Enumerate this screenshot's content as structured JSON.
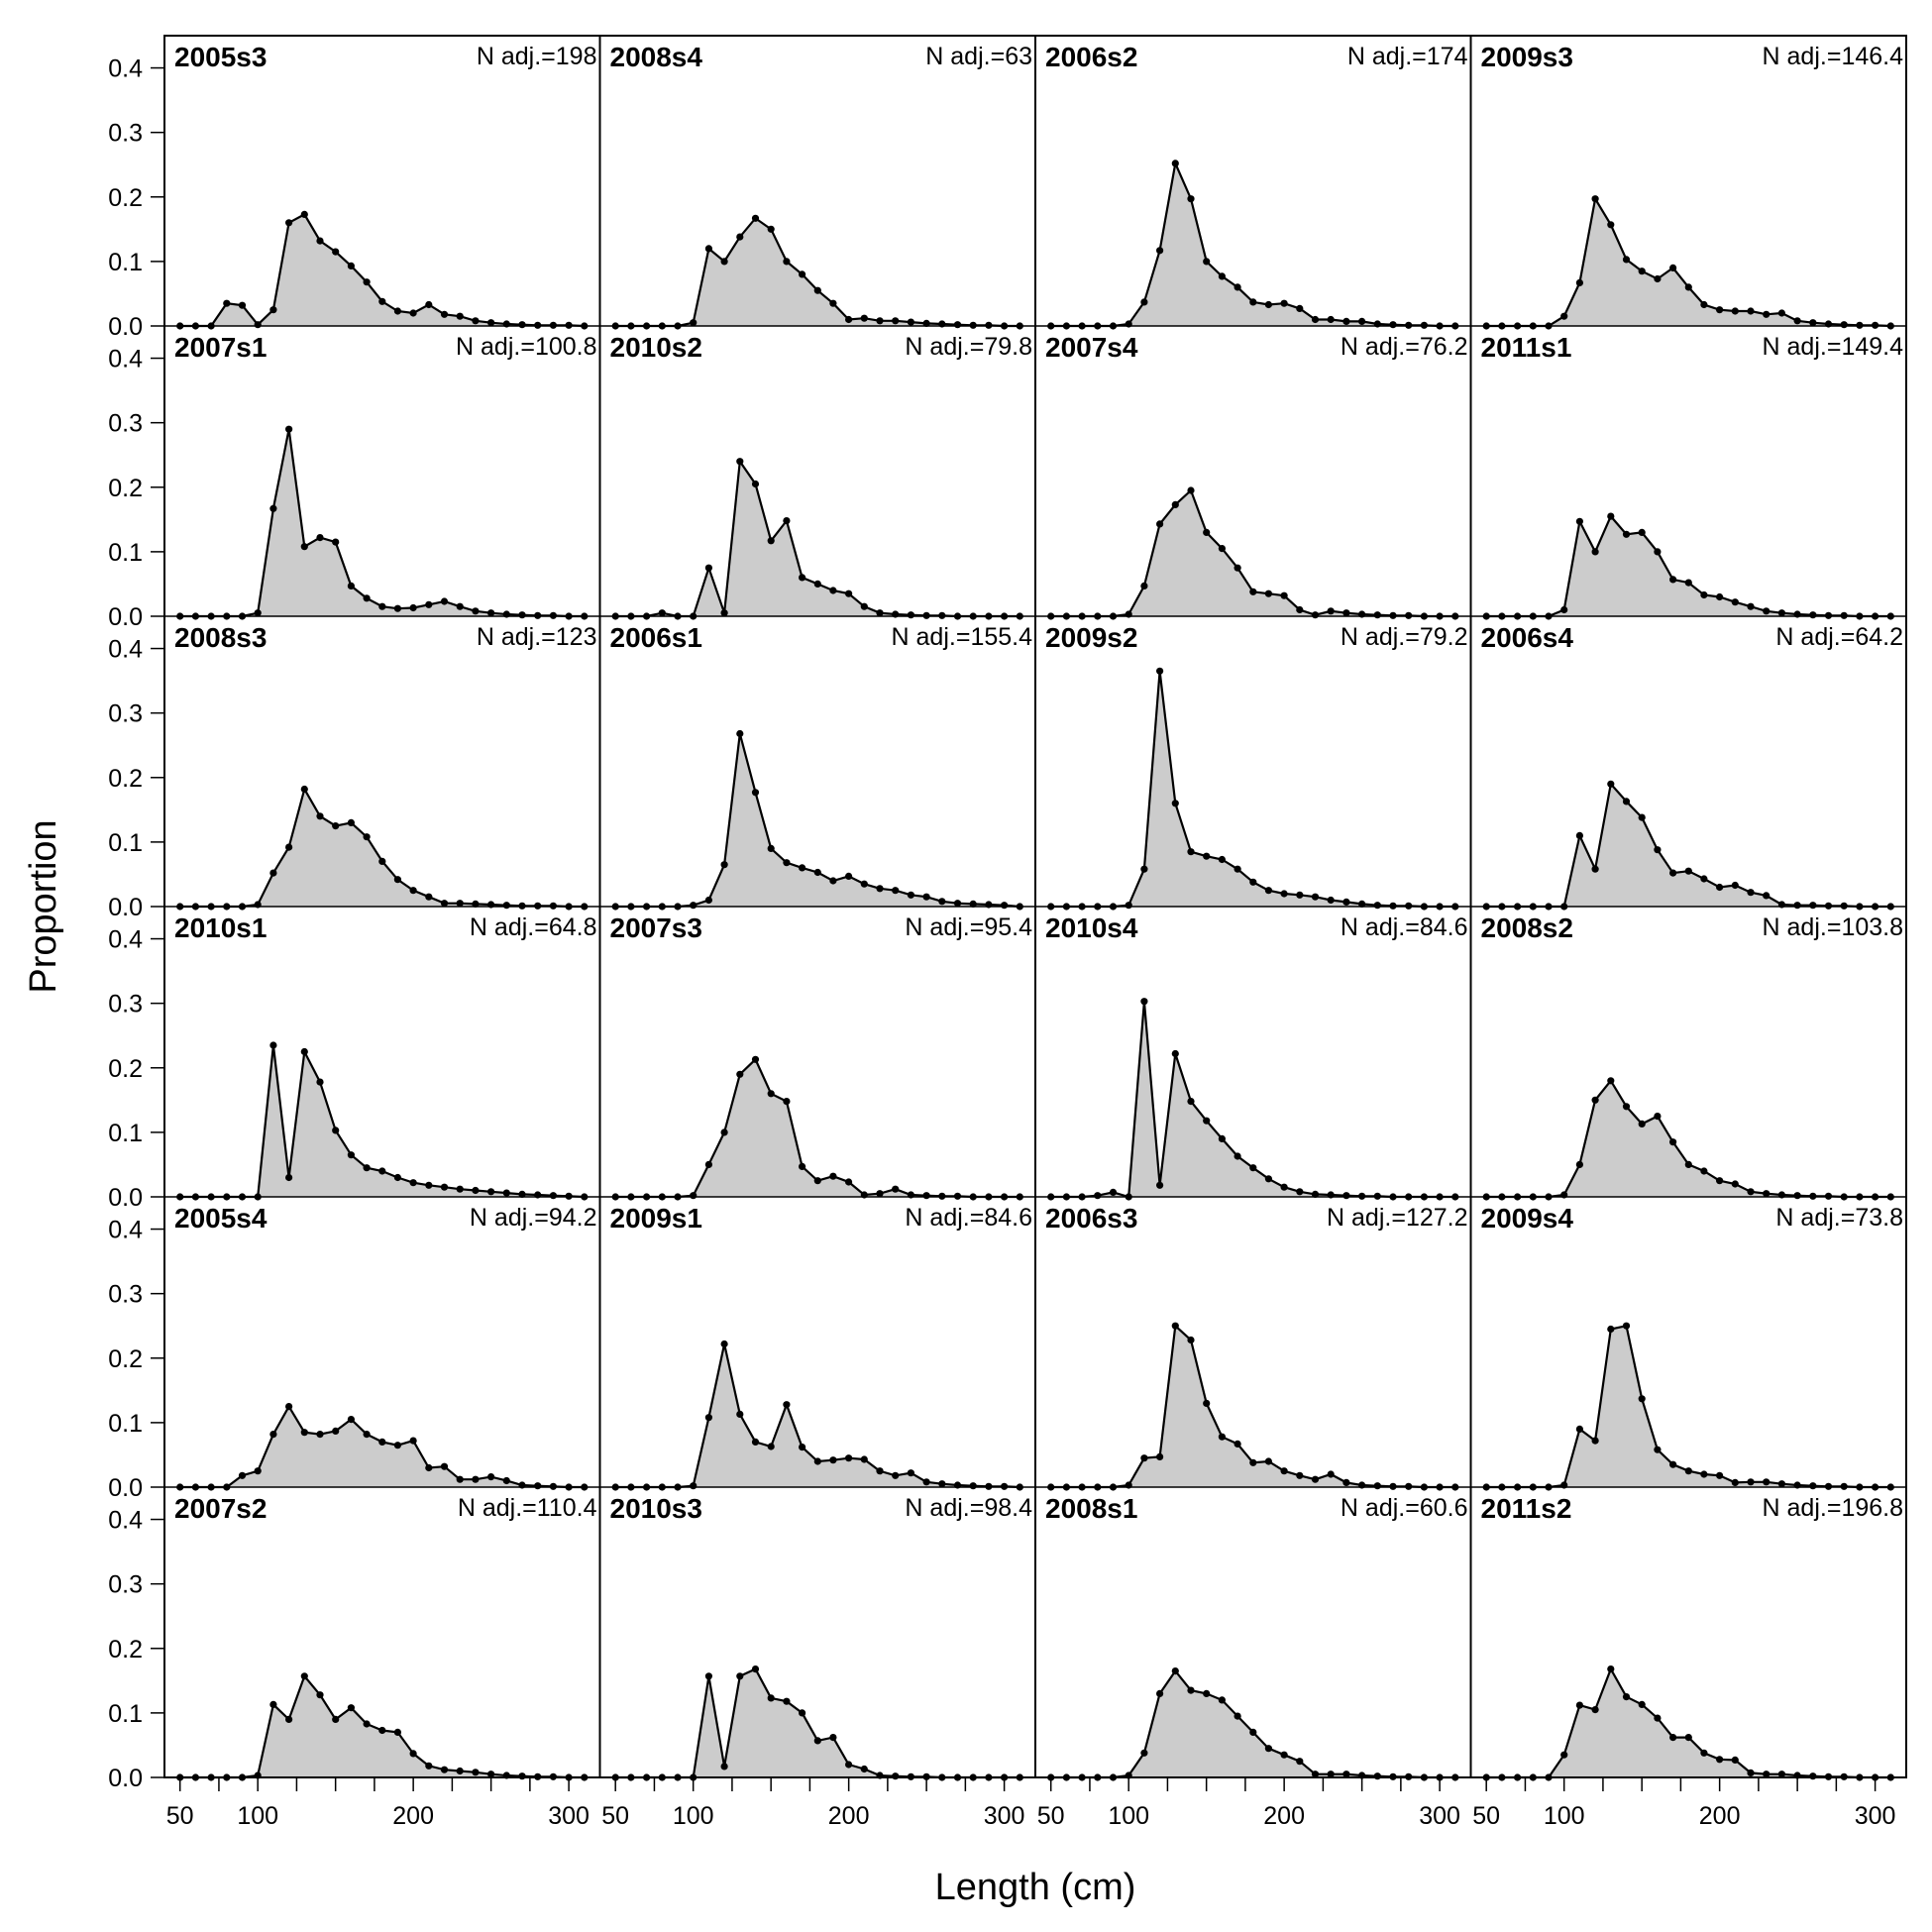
{
  "chart_data": {
    "type": "area",
    "xlabel": "Length (cm)",
    "ylabel": "Proportion",
    "xlim": [
      40,
      320
    ],
    "ylim": [
      0,
      0.45
    ],
    "x_ticks": [
      50,
      75,
      100,
      125,
      150,
      175,
      200,
      225,
      250,
      275,
      300
    ],
    "x_tick_labels": [
      {
        "value": 50,
        "label": "50"
      },
      {
        "value": 100,
        "label": "100"
      },
      {
        "value": 200,
        "label": "200"
      },
      {
        "value": 300,
        "label": "300"
      }
    ],
    "y_ticks": [
      {
        "value": 0.0,
        "label": "0.0"
      },
      {
        "value": 0.1,
        "label": "0.1"
      },
      {
        "value": 0.2,
        "label": "0.2"
      },
      {
        "value": 0.3,
        "label": "0.3"
      },
      {
        "value": 0.4,
        "label": "0.4"
      }
    ],
    "x": [
      50,
      60,
      70,
      80,
      90,
      100,
      110,
      120,
      130,
      140,
      150,
      160,
      170,
      180,
      190,
      200,
      210,
      220,
      230,
      240,
      250,
      260,
      270,
      280,
      290,
      300,
      310
    ],
    "panels": [
      {
        "title": "2005s3",
        "n_label": "N adj.=198",
        "values": [
          0,
          0,
          0,
          0.035,
          0.032,
          0.002,
          0.025,
          0.16,
          0.173,
          0.132,
          0.115,
          0.093,
          0.068,
          0.038,
          0.023,
          0.02,
          0.033,
          0.018,
          0.015,
          0.008,
          0.005,
          0.003,
          0.002,
          0.001,
          0.001,
          0.001,
          0
        ]
      },
      {
        "title": "2007s1",
        "n_label": "N adj.=100.8",
        "values": [
          0,
          0,
          0,
          0,
          0,
          0.005,
          0.167,
          0.29,
          0.108,
          0.122,
          0.115,
          0.047,
          0.028,
          0.015,
          0.012,
          0.013,
          0.018,
          0.023,
          0.015,
          0.008,
          0.005,
          0.003,
          0.002,
          0.001,
          0.001,
          0,
          0
        ]
      },
      {
        "title": "2008s3",
        "n_label": "N adj.=123",
        "values": [
          0,
          0,
          0,
          0,
          0,
          0.003,
          0.052,
          0.092,
          0.182,
          0.14,
          0.125,
          0.13,
          0.108,
          0.07,
          0.042,
          0.025,
          0.015,
          0.005,
          0.005,
          0.004,
          0.003,
          0.002,
          0.001,
          0.001,
          0.001,
          0,
          0
        ]
      },
      {
        "title": "2010s1",
        "n_label": "N adj.=64.8",
        "values": [
          0,
          0,
          0,
          0,
          0,
          0,
          0.235,
          0.03,
          0.225,
          0.178,
          0.103,
          0.065,
          0.045,
          0.04,
          0.03,
          0.022,
          0.018,
          0.015,
          0.012,
          0.01,
          0.008,
          0.006,
          0.004,
          0.003,
          0.002,
          0.001,
          0
        ]
      },
      {
        "title": "2005s4",
        "n_label": "N adj.=94.2",
        "values": [
          0,
          0,
          0,
          0,
          0.018,
          0.025,
          0.082,
          0.125,
          0.085,
          0.082,
          0.087,
          0.105,
          0.082,
          0.07,
          0.065,
          0.072,
          0.03,
          0.032,
          0.012,
          0.012,
          0.016,
          0.01,
          0.003,
          0.002,
          0.001,
          0,
          0
        ]
      },
      {
        "title": "2007s2",
        "n_label": "N adj.=110.4",
        "values": [
          0,
          0,
          0,
          0,
          0,
          0.003,
          0.113,
          0.09,
          0.157,
          0.128,
          0.09,
          0.108,
          0.083,
          0.073,
          0.07,
          0.037,
          0.018,
          0.012,
          0.01,
          0.008,
          0.005,
          0.003,
          0.002,
          0.001,
          0.001,
          0,
          0
        ]
      },
      {
        "title": "2008s4",
        "n_label": "N adj.=63",
        "values": [
          0,
          0,
          0,
          0,
          0,
          0.005,
          0.12,
          0.1,
          0.138,
          0.167,
          0.15,
          0.1,
          0.08,
          0.055,
          0.035,
          0.01,
          0.012,
          0.008,
          0.008,
          0.006,
          0.004,
          0.003,
          0.002,
          0.001,
          0.001,
          0,
          0
        ]
      },
      {
        "title": "2010s2",
        "n_label": "N adj.=79.8",
        "values": [
          0,
          0,
          0,
          0.005,
          0,
          0,
          0.075,
          0.005,
          0.24,
          0.205,
          0.117,
          0.148,
          0.06,
          0.05,
          0.04,
          0.035,
          0.015,
          0.005,
          0.003,
          0.002,
          0.001,
          0.001,
          0,
          0,
          0,
          0,
          0
        ]
      },
      {
        "title": "2006s1",
        "n_label": "N adj.=155.4",
        "values": [
          0,
          0,
          0,
          0,
          0,
          0.002,
          0.01,
          0.065,
          0.268,
          0.177,
          0.09,
          0.068,
          0.06,
          0.053,
          0.04,
          0.047,
          0.035,
          0.028,
          0.025,
          0.018,
          0.015,
          0.008,
          0.005,
          0.004,
          0.003,
          0.002,
          0
        ]
      },
      {
        "title": "2007s3",
        "n_label": "N adj.=95.4",
        "values": [
          0,
          0,
          0,
          0,
          0,
          0.002,
          0.05,
          0.1,
          0.19,
          0.213,
          0.16,
          0.148,
          0.047,
          0.025,
          0.032,
          0.023,
          0.003,
          0.005,
          0.012,
          0.003,
          0.002,
          0.001,
          0.001,
          0,
          0,
          0,
          0
        ]
      },
      {
        "title": "2009s1",
        "n_label": "N adj.=84.6",
        "values": [
          0,
          0,
          0,
          0,
          0,
          0.002,
          0.108,
          0.222,
          0.113,
          0.07,
          0.063,
          0.128,
          0.062,
          0.04,
          0.042,
          0.045,
          0.043,
          0.025,
          0.018,
          0.022,
          0.008,
          0.005,
          0.003,
          0.002,
          0.001,
          0.001,
          0
        ]
      },
      {
        "title": "2010s3",
        "n_label": "N adj.=98.4",
        "values": [
          0,
          0,
          0,
          0,
          0,
          0,
          0.157,
          0.017,
          0.157,
          0.168,
          0.123,
          0.118,
          0.1,
          0.057,
          0.062,
          0.02,
          0.013,
          0.003,
          0.002,
          0.001,
          0.001,
          0,
          0,
          0,
          0,
          0,
          0
        ]
      },
      {
        "title": "2006s2",
        "n_label": "N adj.=174",
        "values": [
          0,
          0,
          0,
          0,
          0,
          0.003,
          0.037,
          0.117,
          0.252,
          0.197,
          0.1,
          0.077,
          0.06,
          0.037,
          0.033,
          0.035,
          0.027,
          0.01,
          0.01,
          0.007,
          0.007,
          0.003,
          0.002,
          0.001,
          0.001,
          0,
          0
        ]
      },
      {
        "title": "2007s4",
        "n_label": "N adj.=76.2",
        "values": [
          0,
          0,
          0,
          0,
          0,
          0.003,
          0.047,
          0.143,
          0.173,
          0.195,
          0.13,
          0.105,
          0.075,
          0.038,
          0.035,
          0.032,
          0.01,
          0.002,
          0.008,
          0.005,
          0.003,
          0.002,
          0.001,
          0.001,
          0,
          0,
          0
        ]
      },
      {
        "title": "2009s2",
        "n_label": "N adj.=79.2",
        "values": [
          0,
          0,
          0,
          0,
          0,
          0.002,
          0.058,
          0.365,
          0.16,
          0.085,
          0.078,
          0.073,
          0.058,
          0.038,
          0.025,
          0.02,
          0.018,
          0.015,
          0.01,
          0.007,
          0.004,
          0.002,
          0.001,
          0.001,
          0,
          0,
          0
        ]
      },
      {
        "title": "2010s4",
        "n_label": "N adj.=84.6",
        "values": [
          0,
          0,
          0,
          0.002,
          0.007,
          0,
          0.303,
          0.018,
          0.222,
          0.148,
          0.118,
          0.09,
          0.063,
          0.045,
          0.028,
          0.015,
          0.008,
          0.004,
          0.003,
          0.002,
          0.001,
          0.001,
          0,
          0,
          0,
          0,
          0
        ]
      },
      {
        "title": "2006s3",
        "n_label": "N adj.=127.2",
        "values": [
          0,
          0,
          0,
          0,
          0,
          0.003,
          0.045,
          0.047,
          0.25,
          0.228,
          0.13,
          0.078,
          0.067,
          0.038,
          0.04,
          0.025,
          0.018,
          0.012,
          0.02,
          0.007,
          0.003,
          0.002,
          0.001,
          0.001,
          0,
          0,
          0
        ]
      },
      {
        "title": "2008s1",
        "n_label": "N adj.=60.6",
        "values": [
          0,
          0,
          0,
          0,
          0,
          0.003,
          0.038,
          0.13,
          0.165,
          0.135,
          0.13,
          0.12,
          0.095,
          0.07,
          0.045,
          0.035,
          0.025,
          0.005,
          0.005,
          0.005,
          0.003,
          0.002,
          0.001,
          0.001,
          0,
          0,
          0
        ]
      },
      {
        "title": "2009s3",
        "n_label": "N adj.=146.4",
        "values": [
          0,
          0,
          0,
          0,
          0,
          0.015,
          0.067,
          0.197,
          0.157,
          0.103,
          0.085,
          0.073,
          0.09,
          0.06,
          0.033,
          0.025,
          0.023,
          0.023,
          0.018,
          0.02,
          0.008,
          0.005,
          0.003,
          0.002,
          0.001,
          0.001,
          0
        ]
      },
      {
        "title": "2011s1",
        "n_label": "N adj.=149.4",
        "values": [
          0,
          0,
          0,
          0,
          0,
          0.01,
          0.147,
          0.1,
          0.155,
          0.127,
          0.13,
          0.1,
          0.057,
          0.052,
          0.033,
          0.03,
          0.022,
          0.015,
          0.008,
          0.005,
          0.003,
          0.002,
          0.001,
          0.001,
          0,
          0,
          0
        ]
      },
      {
        "title": "2006s4",
        "n_label": "N adj.=64.2",
        "values": [
          0,
          0,
          0,
          0,
          0,
          0,
          0.11,
          0.058,
          0.19,
          0.163,
          0.138,
          0.088,
          0.052,
          0.055,
          0.043,
          0.03,
          0.033,
          0.022,
          0.017,
          0.003,
          0.002,
          0.002,
          0.001,
          0.001,
          0,
          0,
          0
        ]
      },
      {
        "title": "2008s2",
        "n_label": "N adj.=103.8",
        "values": [
          0,
          0,
          0,
          0,
          0,
          0.003,
          0.05,
          0.15,
          0.18,
          0.14,
          0.113,
          0.125,
          0.085,
          0.05,
          0.04,
          0.025,
          0.02,
          0.008,
          0.005,
          0.003,
          0.002,
          0.001,
          0.001,
          0,
          0,
          0,
          0
        ]
      },
      {
        "title": "2009s4",
        "n_label": "N adj.=73.8",
        "values": [
          0,
          0,
          0,
          0,
          0,
          0.003,
          0.09,
          0.072,
          0.245,
          0.25,
          0.137,
          0.058,
          0.035,
          0.025,
          0.02,
          0.018,
          0.007,
          0.008,
          0.008,
          0.005,
          0.003,
          0.002,
          0.001,
          0.001,
          0,
          0,
          0
        ]
      },
      {
        "title": "2011s2",
        "n_label": "N adj.=196.8",
        "values": [
          0,
          0,
          0,
          0,
          0,
          0.035,
          0.112,
          0.105,
          0.168,
          0.125,
          0.113,
          0.092,
          0.062,
          0.062,
          0.038,
          0.028,
          0.027,
          0.007,
          0.005,
          0.005,
          0.003,
          0.002,
          0.001,
          0.001,
          0,
          0,
          0
        ]
      }
    ]
  },
  "colors": {
    "fill": "#cccccc",
    "line": "#000000",
    "frame": "#000000"
  }
}
